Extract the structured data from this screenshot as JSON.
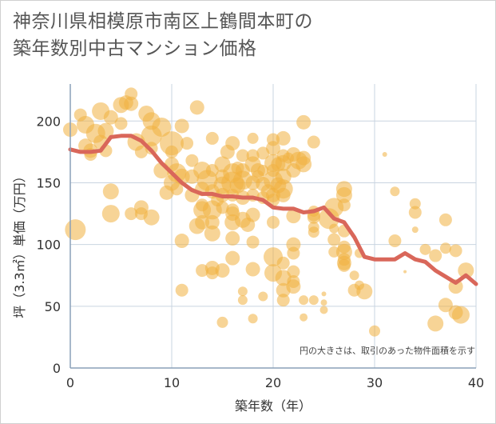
{
  "title_line1": "神奈川県相模原市南区上鶴間本町の",
  "title_line2": "築年数別中古マンション価格",
  "chart_data": {
    "type": "scatter",
    "title": "神奈川県相模原市南区上鶴間本町の築年数別中古マンション価格",
    "xlabel": "築年数（年）",
    "ylabel": "坪（3.3㎡）単価（万円）",
    "xlim": [
      0,
      40
    ],
    "ylim": [
      0,
      230
    ],
    "xticks": [
      0,
      10,
      20,
      30,
      40
    ],
    "yticks": [
      0,
      50,
      100,
      150,
      200
    ],
    "grid": true,
    "note": "円の大きさは、取引のあった物件面積を示す",
    "bubble_color": "#f0b040",
    "line_color": "#d9675a",
    "series": [
      {
        "name": "",
        "type": "scatter",
        "points": [
          [
            0,
            193,
            9
          ],
          [
            0.5,
            112,
            13
          ],
          [
            1,
            205,
            8
          ],
          [
            1.5,
            197,
            11
          ],
          [
            1.5,
            180,
            9
          ],
          [
            2,
            176,
            9
          ],
          [
            2,
            173,
            8
          ],
          [
            2.5,
            190,
            12
          ],
          [
            3,
            208,
            11
          ],
          [
            3,
            183,
            9
          ],
          [
            3.5,
            192,
            10
          ],
          [
            3.5,
            176,
            8
          ],
          [
            4,
            143,
            10
          ],
          [
            4,
            125,
            11
          ],
          [
            4,
            203,
            9
          ],
          [
            5,
            213,
            10
          ],
          [
            5,
            198,
            8
          ],
          [
            5.5,
            215,
            9
          ],
          [
            6,
            222,
            8
          ],
          [
            6,
            214,
            9
          ],
          [
            6,
            125,
            8
          ],
          [
            6.5,
            183,
            11
          ],
          [
            7,
            175,
            8
          ],
          [
            7,
            130,
            9
          ],
          [
            7,
            125,
            8
          ],
          [
            7.5,
            206,
            10
          ],
          [
            8,
            200,
            11
          ],
          [
            8,
            188,
            13
          ],
          [
            8,
            178,
            8
          ],
          [
            8,
            122,
            10
          ],
          [
            9,
            195,
            12
          ],
          [
            9,
            160,
            10
          ],
          [
            9.5,
            142,
            9
          ],
          [
            10,
            182,
            15
          ],
          [
            10,
            175,
            8
          ],
          [
            10,
            165,
            9
          ],
          [
            10,
            150,
            10
          ],
          [
            10.5,
            158,
            12
          ],
          [
            10.5,
            145,
            8
          ],
          [
            11,
            196,
            9
          ],
          [
            11,
            155,
            10
          ],
          [
            11,
            103,
            9
          ],
          [
            11,
            63,
            8
          ],
          [
            11.5,
            182,
            8
          ],
          [
            12,
            168,
            8
          ],
          [
            12,
            155,
            9
          ],
          [
            12,
            140,
            9
          ],
          [
            12.5,
            211,
            9
          ],
          [
            12.5,
            115,
            10
          ],
          [
            13,
            160,
            11
          ],
          [
            13,
            145,
            9
          ],
          [
            13,
            132,
            8
          ],
          [
            13,
            128,
            11
          ],
          [
            13,
            118,
            9
          ],
          [
            13,
            79,
            8
          ],
          [
            13.5,
            152,
            13
          ],
          [
            14,
            186,
            8
          ],
          [
            14,
            160,
            8
          ],
          [
            14,
            143,
            9
          ],
          [
            14,
            128,
            12
          ],
          [
            14,
            118,
            9
          ],
          [
            14,
            109,
            10
          ],
          [
            14,
            81,
            9
          ],
          [
            14,
            77,
            8
          ],
          [
            14.5,
            136,
            8
          ],
          [
            15,
            165,
            10
          ],
          [
            15,
            155,
            9
          ],
          [
            15,
            148,
            11
          ],
          [
            15,
            140,
            9
          ],
          [
            15,
            130,
            8
          ],
          [
            15,
            79,
            9
          ],
          [
            15,
            37,
            7
          ],
          [
            15.5,
            175,
            9
          ],
          [
            16,
            182,
            9
          ],
          [
            16,
            158,
            12
          ],
          [
            16,
            150,
            14
          ],
          [
            16,
            140,
            8
          ],
          [
            16,
            128,
            8
          ],
          [
            16,
            125,
            9
          ],
          [
            16,
            118,
            10
          ],
          [
            16,
            105,
            9
          ],
          [
            16,
            89,
            9
          ],
          [
            16.5,
            162,
            8
          ],
          [
            16.5,
            148,
            10
          ],
          [
            17,
            172,
            8
          ],
          [
            17,
            160,
            9
          ],
          [
            17,
            152,
            12
          ],
          [
            17,
            138,
            9
          ],
          [
            17,
            120,
            10
          ],
          [
            17,
            62,
            6
          ],
          [
            17,
            55,
            6
          ],
          [
            17.5,
            116,
            9
          ],
          [
            18,
            186,
            7
          ],
          [
            18,
            172,
            8
          ],
          [
            18,
            165,
            10
          ],
          [
            18,
            150,
            9
          ],
          [
            18,
            140,
            8
          ],
          [
            18,
            124,
            9
          ],
          [
            18,
            102,
            8
          ],
          [
            18,
            80,
            9
          ],
          [
            18,
            40,
            6
          ],
          [
            18.5,
            160,
            9
          ],
          [
            18.5,
            155,
            8
          ],
          [
            19,
            174,
            8
          ],
          [
            19,
            160,
            7
          ],
          [
            19,
            149,
            9
          ],
          [
            19,
            138,
            8
          ],
          [
            19,
            58,
            6
          ],
          [
            19.5,
            143,
            9
          ],
          [
            20,
            185,
            8
          ],
          [
            20,
            178,
            9
          ],
          [
            20,
            166,
            11
          ],
          [
            20,
            160,
            8
          ],
          [
            20,
            152,
            12
          ],
          [
            20,
            140,
            9
          ],
          [
            20,
            136,
            8
          ],
          [
            20,
            118,
            8
          ],
          [
            20,
            90,
            12
          ],
          [
            20,
            77,
            11
          ],
          [
            20.5,
            165,
            9
          ],
          [
            20.5,
            148,
            10
          ],
          [
            21,
            186,
            9
          ],
          [
            21,
            172,
            8
          ],
          [
            21,
            166,
            10
          ],
          [
            21,
            155,
            10
          ],
          [
            21,
            145,
            12
          ],
          [
            21,
            140,
            9
          ],
          [
            21,
            85,
            8
          ],
          [
            21,
            73,
            10
          ],
          [
            21,
            63,
            9
          ],
          [
            21,
            55,
            8
          ],
          [
            21.5,
            170,
            7
          ],
          [
            22,
            173,
            9
          ],
          [
            22,
            160,
            9
          ],
          [
            22,
            123,
            9
          ],
          [
            22,
            100,
            9
          ],
          [
            22,
            93,
            8
          ],
          [
            22,
            78,
            8
          ],
          [
            22,
            70,
            8
          ],
          [
            22,
            66,
            9
          ],
          [
            22.5,
            168,
            11
          ],
          [
            23,
            199,
            9
          ],
          [
            23,
            170,
            9
          ],
          [
            23,
            165,
            10
          ],
          [
            23,
            55,
            6
          ],
          [
            23,
            41,
            5
          ],
          [
            24,
            183,
            8
          ],
          [
            24,
            127,
            7
          ],
          [
            24,
            124,
            8
          ],
          [
            24,
            122,
            8
          ],
          [
            24,
            114,
            7
          ],
          [
            24,
            110,
            7
          ],
          [
            24,
            55,
            6
          ],
          [
            25,
            60,
            3
          ],
          [
            25,
            53,
            4
          ],
          [
            25,
            47,
            5
          ],
          [
            25.5,
            121,
            13
          ],
          [
            26,
            130,
            12
          ],
          [
            26,
            113,
            6
          ],
          [
            26,
            104,
            8
          ],
          [
            26,
            94,
            7
          ],
          [
            27,
            145,
            10
          ],
          [
            27,
            140,
            10
          ],
          [
            27,
            132,
            8
          ],
          [
            27,
            111,
            8
          ],
          [
            27,
            98,
            8
          ],
          [
            27,
            94,
            10
          ],
          [
            27,
            88,
            8
          ],
          [
            27,
            85,
            9
          ],
          [
            27,
            83,
            8
          ],
          [
            28,
            75,
            6
          ],
          [
            28,
            63,
            8
          ],
          [
            28.5,
            67,
            6
          ],
          [
            28.5,
            93,
            6
          ],
          [
            29,
            62,
            10
          ],
          [
            30,
            30,
            7
          ],
          [
            31,
            173,
            3
          ],
          [
            32,
            143,
            6
          ],
          [
            32,
            103,
            8
          ],
          [
            33,
            78,
            2
          ],
          [
            34,
            133,
            7
          ],
          [
            34,
            126,
            8
          ],
          [
            34,
            112,
            4
          ],
          [
            35,
            96,
            7
          ],
          [
            36,
            91,
            8
          ],
          [
            36,
            36,
            10
          ],
          [
            37,
            120,
            8
          ],
          [
            37,
            97,
            7
          ],
          [
            37,
            51,
            9
          ],
          [
            38,
            45,
            9
          ],
          [
            38,
            66,
            9
          ],
          [
            38.5,
            43,
            11
          ],
          [
            38,
            95,
            8
          ],
          [
            39,
            79,
            10
          ]
        ]
      },
      {
        "name": "",
        "type": "line",
        "points": [
          [
            0,
            177
          ],
          [
            1,
            175
          ],
          [
            2,
            175
          ],
          [
            3,
            176
          ],
          [
            4,
            187
          ],
          [
            5,
            188
          ],
          [
            6,
            188
          ],
          [
            7,
            184
          ],
          [
            8,
            176
          ],
          [
            9,
            166
          ],
          [
            10,
            158
          ],
          [
            11,
            150
          ],
          [
            12,
            144
          ],
          [
            13,
            141
          ],
          [
            14,
            141
          ],
          [
            15,
            139
          ],
          [
            16,
            139
          ],
          [
            17,
            138
          ],
          [
            18,
            138
          ],
          [
            19,
            136
          ],
          [
            20,
            130
          ],
          [
            21,
            129
          ],
          [
            22,
            129
          ],
          [
            23,
            126
          ],
          [
            24,
            127
          ],
          [
            25,
            130
          ],
          [
            26,
            121
          ],
          [
            27,
            118
          ],
          [
            28,
            106
          ],
          [
            29,
            90
          ],
          [
            30,
            88
          ],
          [
            31,
            88
          ],
          [
            32,
            88
          ],
          [
            33,
            93
          ],
          [
            34,
            88
          ],
          [
            35,
            86
          ],
          [
            36,
            79
          ],
          [
            37,
            74
          ],
          [
            38,
            69
          ],
          [
            39,
            75
          ],
          [
            40,
            68
          ]
        ]
      }
    ]
  }
}
